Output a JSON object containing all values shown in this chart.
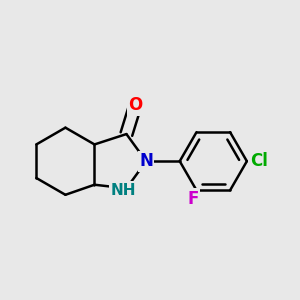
{
  "background_color": "#e8e8e8",
  "bond_color": "#000000",
  "bond_width": 1.8,
  "atom_colors": {
    "O": "#ff0000",
    "N": "#0000cd",
    "NH": "#008080",
    "Cl": "#00aa00",
    "F": "#cc00cc",
    "C": "#000000"
  },
  "font_size": 12
}
